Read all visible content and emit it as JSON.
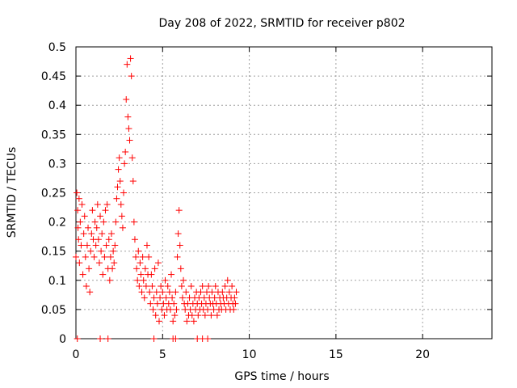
{
  "chart_data": {
    "type": "scatter",
    "title": "Day 208 of 2022, SRMTID for receiver p802",
    "xlabel": "GPS time / hours",
    "ylabel": "SRMTID / TECUs",
    "xlim": [
      0,
      24
    ],
    "ylim": [
      0,
      0.5
    ],
    "x_ticks": [
      0,
      5,
      10,
      15,
      20
    ],
    "y_ticks": [
      0,
      0.05,
      0.1,
      0.15,
      0.2,
      0.25,
      0.3,
      0.35,
      0.4,
      0.45,
      0.5
    ],
    "x_tick_labels": [
      "0",
      "5",
      "10",
      "15",
      "20"
    ],
    "y_tick_labels": [
      "0",
      "0.05",
      "0.1",
      "0.15",
      "0.2",
      "0.25",
      "0.3",
      "0.35",
      "0.4",
      "0.45",
      "0.5"
    ],
    "grid": true,
    "marker": "+",
    "series": [
      {
        "name": "p802",
        "color": "#ff0000",
        "points": [
          [
            0.0,
            0.14
          ],
          [
            0.05,
            0.25
          ],
          [
            0.1,
            0.22
          ],
          [
            0.12,
            0.19
          ],
          [
            0.15,
            0.17
          ],
          [
            0.18,
            0.24
          ],
          [
            0.2,
            0.13
          ],
          [
            0.25,
            0.2
          ],
          [
            0.3,
            0.16
          ],
          [
            0.35,
            0.23
          ],
          [
            0.4,
            0.11
          ],
          [
            0.45,
            0.18
          ],
          [
            0.5,
            0.21
          ],
          [
            0.55,
            0.14
          ],
          [
            0.6,
            0.09
          ],
          [
            0.65,
            0.16
          ],
          [
            0.7,
            0.19
          ],
          [
            0.75,
            0.12
          ],
          [
            0.8,
            0.08
          ],
          [
            0.85,
            0.15
          ],
          [
            0.9,
            0.18
          ],
          [
            0.95,
            0.22
          ],
          [
            1.0,
            0.17
          ],
          [
            1.05,
            0.14
          ],
          [
            1.1,
            0.2
          ],
          [
            1.15,
            0.16
          ],
          [
            1.2,
            0.19
          ],
          [
            1.25,
            0.23
          ],
          [
            1.3,
            0.17
          ],
          [
            1.35,
            0.13
          ],
          [
            1.4,
            0.21
          ],
          [
            1.45,
            0.15
          ],
          [
            1.5,
            0.18
          ],
          [
            1.55,
            0.11
          ],
          [
            1.6,
            0.2
          ],
          [
            1.65,
            0.14
          ],
          [
            1.7,
            0.22
          ],
          [
            1.75,
            0.16
          ],
          [
            1.8,
            0.23
          ],
          [
            1.85,
            0.12
          ],
          [
            1.9,
            0.17
          ],
          [
            1.95,
            0.1
          ],
          [
            2.0,
            0.14
          ],
          [
            2.05,
            0.18
          ],
          [
            2.1,
            0.12
          ],
          [
            2.15,
            0.15
          ],
          [
            2.2,
            0.13
          ],
          [
            2.25,
            0.16
          ],
          [
            2.3,
            0.2
          ],
          [
            2.35,
            0.24
          ],
          [
            2.4,
            0.26
          ],
          [
            2.45,
            0.29
          ],
          [
            2.5,
            0.31
          ],
          [
            2.55,
            0.27
          ],
          [
            2.6,
            0.23
          ],
          [
            2.65,
            0.21
          ],
          [
            2.7,
            0.19
          ],
          [
            2.75,
            0.25
          ],
          [
            2.8,
            0.3
          ],
          [
            2.85,
            0.32
          ],
          [
            2.9,
            0.41
          ],
          [
            2.95,
            0.47
          ],
          [
            3.0,
            0.38
          ],
          [
            3.05,
            0.36
          ],
          [
            3.1,
            0.34
          ],
          [
            3.15,
            0.48
          ],
          [
            3.2,
            0.45
          ],
          [
            3.25,
            0.31
          ],
          [
            3.3,
            0.27
          ],
          [
            3.35,
            0.2
          ],
          [
            3.4,
            0.17
          ],
          [
            3.45,
            0.14
          ],
          [
            3.5,
            0.12
          ],
          [
            3.55,
            0.1
          ],
          [
            3.6,
            0.15
          ],
          [
            3.65,
            0.09
          ],
          [
            3.7,
            0.13
          ],
          [
            3.75,
            0.11
          ],
          [
            3.8,
            0.08
          ],
          [
            3.85,
            0.14
          ],
          [
            3.9,
            0.1
          ],
          [
            3.95,
            0.07
          ],
          [
            4.0,
            0.12
          ],
          [
            4.05,
            0.09
          ],
          [
            4.1,
            0.16
          ],
          [
            4.15,
            0.11
          ],
          [
            4.2,
            0.14
          ],
          [
            4.25,
            0.08
          ],
          [
            4.3,
            0.06
          ],
          [
            4.35,
            0.11
          ],
          [
            4.4,
            0.09
          ],
          [
            4.45,
            0.05
          ],
          [
            4.5,
            0.07
          ],
          [
            4.55,
            0.12
          ],
          [
            4.6,
            0.04
          ],
          [
            4.65,
            0.08
          ],
          [
            4.7,
            0.06
          ],
          [
            4.75,
            0.13
          ],
          [
            4.8,
            0.03
          ],
          [
            4.85,
            0.07
          ],
          [
            4.9,
            0.09
          ],
          [
            4.95,
            0.05
          ],
          [
            5.0,
            0.08
          ],
          [
            5.05,
            0.06
          ],
          [
            5.1,
            0.04
          ],
          [
            5.15,
            0.1
          ],
          [
            5.2,
            0.07
          ],
          [
            5.25,
            0.05
          ],
          [
            5.3,
            0.09
          ],
          [
            5.35,
            0.06
          ],
          [
            5.4,
            0.08
          ],
          [
            5.45,
            0.05
          ],
          [
            5.5,
            0.11
          ],
          [
            5.55,
            0.07
          ],
          [
            5.6,
            0.03
          ],
          [
            5.65,
            0.06
          ],
          [
            5.7,
            0.04
          ],
          [
            5.75,
            0.08
          ],
          [
            5.8,
            0.05
          ],
          [
            5.85,
            0.14
          ],
          [
            5.9,
            0.18
          ],
          [
            5.95,
            0.22
          ],
          [
            6.0,
            0.16
          ],
          [
            6.05,
            0.12
          ],
          [
            6.1,
            0.09
          ],
          [
            6.15,
            0.07
          ],
          [
            6.2,
            0.1
          ],
          [
            6.25,
            0.06
          ],
          [
            6.3,
            0.05
          ],
          [
            6.35,
            0.08
          ],
          [
            6.4,
            0.03
          ],
          [
            6.45,
            0.06
          ],
          [
            6.5,
            0.04
          ],
          [
            6.55,
            0.07
          ],
          [
            6.6,
            0.05
          ],
          [
            6.65,
            0.09
          ],
          [
            6.7,
            0.04
          ],
          [
            6.75,
            0.06
          ],
          [
            6.8,
            0.03
          ],
          [
            6.85,
            0.07
          ],
          [
            6.9,
            0.05
          ],
          [
            6.95,
            0.08
          ],
          [
            7.0,
            0.06
          ],
          [
            7.05,
            0.04
          ],
          [
            7.1,
            0.07
          ],
          [
            7.15,
            0.05
          ],
          [
            7.2,
            0.08
          ],
          [
            7.25,
            0.06
          ],
          [
            7.3,
            0.09
          ],
          [
            7.35,
            0.05
          ],
          [
            7.4,
            0.07
          ],
          [
            7.45,
            0.04
          ],
          [
            7.5,
            0.06
          ],
          [
            7.55,
            0.08
          ],
          [
            7.6,
            0.05
          ],
          [
            7.65,
            0.09
          ],
          [
            7.7,
            0.07
          ],
          [
            7.75,
            0.06
          ],
          [
            7.8,
            0.04
          ],
          [
            7.85,
            0.08
          ],
          [
            7.9,
            0.06
          ],
          [
            7.95,
            0.05
          ],
          [
            8.0,
            0.07
          ],
          [
            8.05,
            0.09
          ],
          [
            8.1,
            0.06
          ],
          [
            8.15,
            0.04
          ],
          [
            8.2,
            0.08
          ],
          [
            8.25,
            0.05
          ],
          [
            8.3,
            0.07
          ],
          [
            8.35,
            0.06
          ],
          [
            8.4,
            0.05
          ],
          [
            8.45,
            0.08
          ],
          [
            8.5,
            0.07
          ],
          [
            8.55,
            0.06
          ],
          [
            8.6,
            0.09
          ],
          [
            8.65,
            0.05
          ],
          [
            8.7,
            0.07
          ],
          [
            8.75,
            0.1
          ],
          [
            8.8,
            0.06
          ],
          [
            8.85,
            0.08
          ],
          [
            8.9,
            0.05
          ],
          [
            8.95,
            0.07
          ],
          [
            9.0,
            0.09
          ],
          [
            9.05,
            0.06
          ],
          [
            9.1,
            0.05
          ],
          [
            9.15,
            0.07
          ],
          [
            9.2,
            0.06
          ],
          [
            9.25,
            0.08
          ],
          [
            0.08,
            0.0
          ],
          [
            1.4,
            0.0
          ],
          [
            1.85,
            0.0
          ],
          [
            4.5,
            0.0
          ],
          [
            5.6,
            0.0
          ],
          [
            5.75,
            0.0
          ],
          [
            7.0,
            0.0
          ],
          [
            7.3,
            0.0
          ],
          [
            7.6,
            0.0
          ]
        ]
      }
    ]
  }
}
